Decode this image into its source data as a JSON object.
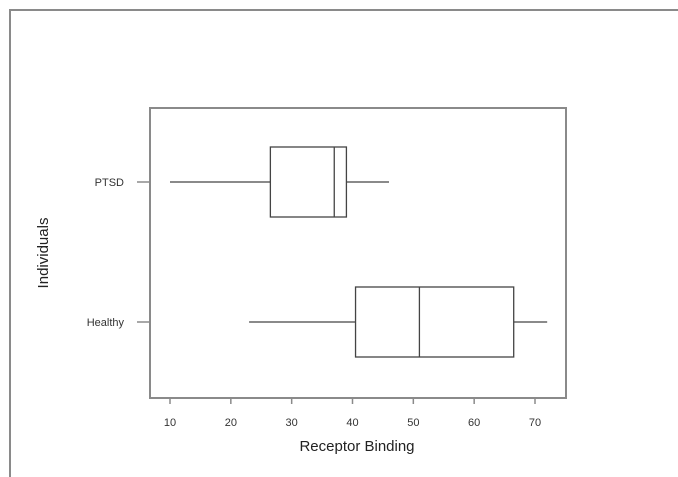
{
  "chart_data": {
    "type": "boxplot",
    "orientation": "horizontal",
    "xlabel": "Receptor Binding",
    "ylabel": "Individuals",
    "x_ticks": [
      10,
      20,
      30,
      40,
      50,
      60,
      70
    ],
    "xlim": [
      7,
      75
    ],
    "categories": [
      "Healthy",
      "PTSD"
    ],
    "boxes": [
      {
        "label": "PTSD",
        "min": 10,
        "q1": 26.5,
        "median": 37,
        "q3": 39,
        "max": 46
      },
      {
        "label": "Healthy",
        "min": 23,
        "q1": 40.5,
        "median": 51,
        "q3": 66.5,
        "max": 72
      }
    ],
    "colors": {
      "stroke": "#444444",
      "frame": "#8a8a8a"
    }
  }
}
